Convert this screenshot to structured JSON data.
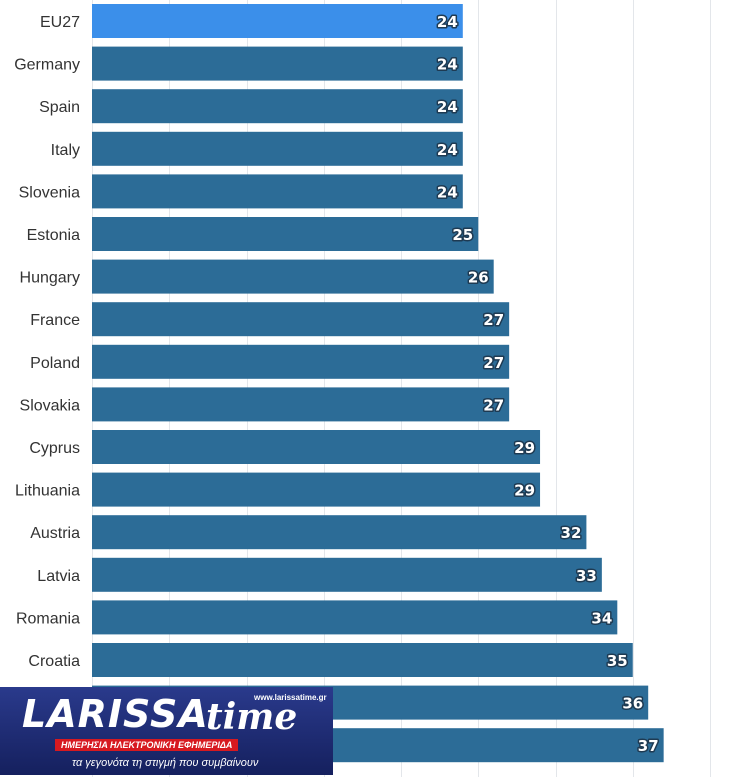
{
  "chart_data": {
    "type": "bar",
    "orientation": "horizontal",
    "categories": [
      "EU27",
      "Germany",
      "Spain",
      "Italy",
      "Slovenia",
      "Estonia",
      "Hungary",
      "France",
      "Poland",
      "Slovakia",
      "Cyprus",
      "Lithuania",
      "Austria",
      "Latvia",
      "Romania",
      "Croatia",
      "",
      ""
    ],
    "values": [
      24,
      24,
      24,
      24,
      24,
      25,
      26,
      27,
      27,
      27,
      29,
      29,
      32,
      33,
      34,
      35,
      36,
      37
    ],
    "highlight": "EU27",
    "xlim": [
      0,
      40
    ],
    "grid": true,
    "colors": {
      "bar": "#2c6c97",
      "highlight": "#3b8fea"
    }
  },
  "logo": {
    "name": "LARISSA",
    "name_suffix": "time",
    "url": "www.larissatime.gr",
    "strap": "ΗΜΕΡΗΣΙΑ ΗΛΕΚΤΡΟΝΙΚΗ ΕΦΗΜΕΡΙΔΑ",
    "tagline": "τα γεγονότα τη στιγμή που συμβαίνουν"
  }
}
